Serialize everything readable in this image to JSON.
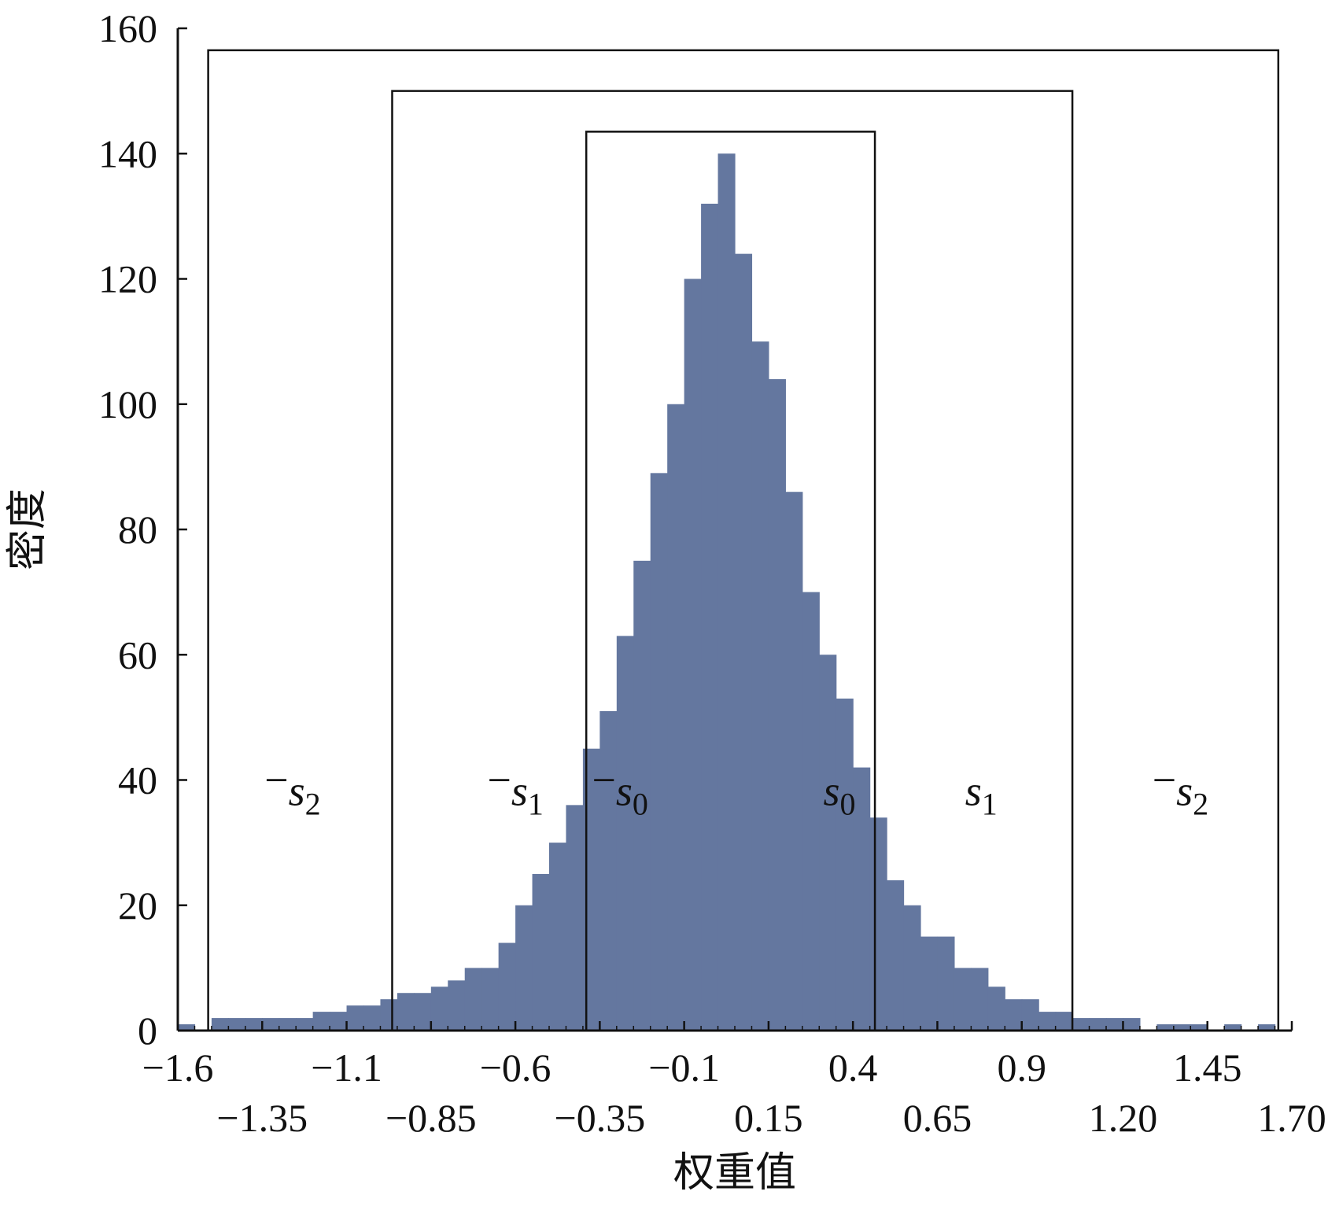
{
  "chart_data": {
    "type": "bar",
    "title": "",
    "xlabel": "权重值",
    "ylabel": "密度",
    "xlim": [
      -1.6,
      1.7
    ],
    "ylim": [
      0,
      160
    ],
    "bar_color": "#64779f",
    "y_ticks": [
      "0",
      "20",
      "40",
      "60",
      "80",
      "100",
      "120",
      "140",
      "160"
    ],
    "x_ticks_row1": [
      {
        "value": -1.6,
        "label": "−1.6"
      },
      {
        "value": -1.1,
        "label": "−1.1"
      },
      {
        "value": -0.6,
        "label": "−0.6"
      },
      {
        "value": -0.1,
        "label": "−0.1"
      },
      {
        "value": 0.4,
        "label": "0.4"
      },
      {
        "value": 0.9,
        "label": "0.9"
      },
      {
        "value": 1.45,
        "label": "1.45"
      }
    ],
    "x_ticks_row2": [
      {
        "value": -1.35,
        "label": "−1.35"
      },
      {
        "value": -0.85,
        "label": "−0.85"
      },
      {
        "value": -0.35,
        "label": "−0.35"
      },
      {
        "value": 0.15,
        "label": "0.15"
      },
      {
        "value": 0.65,
        "label": "0.65"
      },
      {
        "value": 1.2,
        "label": "1.20"
      },
      {
        "value": 1.7,
        "label": "1.70"
      }
    ],
    "bin_width": 0.05,
    "bins": [
      {
        "x0": -1.6,
        "v": 1
      },
      {
        "x0": -1.55,
        "v": 0
      },
      {
        "x0": -1.5,
        "v": 2
      },
      {
        "x0": -1.45,
        "v": 2
      },
      {
        "x0": -1.4,
        "v": 2
      },
      {
        "x0": -1.35,
        "v": 2
      },
      {
        "x0": -1.3,
        "v": 2
      },
      {
        "x0": -1.25,
        "v": 2
      },
      {
        "x0": -1.2,
        "v": 3
      },
      {
        "x0": -1.15,
        "v": 3
      },
      {
        "x0": -1.1,
        "v": 4
      },
      {
        "x0": -1.05,
        "v": 4
      },
      {
        "x0": -1.0,
        "v": 5
      },
      {
        "x0": -0.95,
        "v": 6
      },
      {
        "x0": -0.9,
        "v": 6
      },
      {
        "x0": -0.85,
        "v": 7
      },
      {
        "x0": -0.8,
        "v": 8
      },
      {
        "x0": -0.75,
        "v": 10
      },
      {
        "x0": -0.7,
        "v": 10
      },
      {
        "x0": -0.65,
        "v": 14
      },
      {
        "x0": -0.6,
        "v": 20
      },
      {
        "x0": -0.55,
        "v": 25
      },
      {
        "x0": -0.5,
        "v": 30
      },
      {
        "x0": -0.45,
        "v": 36
      },
      {
        "x0": -0.4,
        "v": 45
      },
      {
        "x0": -0.35,
        "v": 51
      },
      {
        "x0": -0.3,
        "v": 63
      },
      {
        "x0": -0.25,
        "v": 75
      },
      {
        "x0": -0.2,
        "v": 89
      },
      {
        "x0": -0.15,
        "v": 100
      },
      {
        "x0": -0.1,
        "v": 120
      },
      {
        "x0": -0.05,
        "v": 132
      },
      {
        "x0": 0.0,
        "v": 140
      },
      {
        "x0": 0.05,
        "v": 124
      },
      {
        "x0": 0.1,
        "v": 110
      },
      {
        "x0": 0.15,
        "v": 104
      },
      {
        "x0": 0.2,
        "v": 86
      },
      {
        "x0": 0.25,
        "v": 70
      },
      {
        "x0": 0.3,
        "v": 60
      },
      {
        "x0": 0.35,
        "v": 53
      },
      {
        "x0": 0.4,
        "v": 42
      },
      {
        "x0": 0.45,
        "v": 34
      },
      {
        "x0": 0.5,
        "v": 24
      },
      {
        "x0": 0.55,
        "v": 20
      },
      {
        "x0": 0.6,
        "v": 15
      },
      {
        "x0": 0.65,
        "v": 15
      },
      {
        "x0": 0.7,
        "v": 10
      },
      {
        "x0": 0.75,
        "v": 10
      },
      {
        "x0": 0.8,
        "v": 7
      },
      {
        "x0": 0.85,
        "v": 5
      },
      {
        "x0": 0.9,
        "v": 5
      },
      {
        "x0": 0.95,
        "v": 3
      },
      {
        "x0": 1.0,
        "v": 3
      },
      {
        "x0": 1.05,
        "v": 2
      },
      {
        "x0": 1.1,
        "v": 2
      },
      {
        "x0": 1.15,
        "v": 2
      },
      {
        "x0": 1.2,
        "v": 2
      },
      {
        "x0": 1.25,
        "v": 0
      },
      {
        "x0": 1.3,
        "v": 1
      },
      {
        "x0": 1.35,
        "v": 1
      },
      {
        "x0": 1.4,
        "v": 1
      },
      {
        "x0": 1.45,
        "v": 0
      },
      {
        "x0": 1.5,
        "v": 1
      },
      {
        "x0": 1.55,
        "v": 0
      },
      {
        "x0": 1.6,
        "v": 1
      }
    ],
    "region_boxes": [
      {
        "name": "s2",
        "x0": -1.51,
        "x1": 1.66,
        "top": 156.5
      },
      {
        "name": "s1",
        "x0": -0.965,
        "x1": 1.05,
        "top": 150
      },
      {
        "name": "s0",
        "x0": -0.39,
        "x1": 0.465,
        "top": 143.5
      }
    ],
    "annotations": [
      {
        "prefix": "−",
        "letter": "s",
        "sub": "2",
        "x": -1.26,
        "y": 36
      },
      {
        "prefix": "−",
        "letter": "s",
        "sub": "1",
        "x": -0.6,
        "y": 36
      },
      {
        "prefix": "−",
        "letter": "s",
        "sub": "0",
        "x": -0.29,
        "y": 36
      },
      {
        "prefix": "",
        "letter": "s",
        "sub": "0",
        "x": 0.36,
        "y": 36
      },
      {
        "prefix": "",
        "letter": "s",
        "sub": "1",
        "x": 0.78,
        "y": 36
      },
      {
        "prefix": "−",
        "letter": "s",
        "sub": "2",
        "x": 1.37,
        "y": 36
      }
    ]
  }
}
